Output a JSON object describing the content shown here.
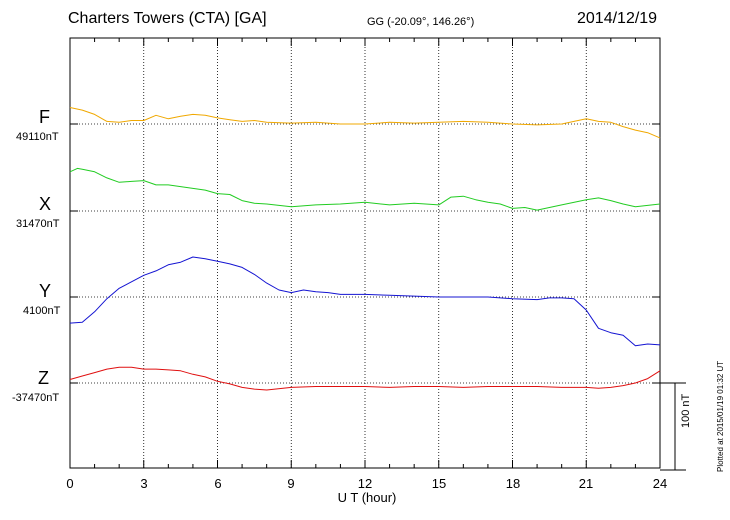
{
  "header": {
    "station": "Charters Towers (CTA)  [GA]",
    "coords": "GG (-20.09°, 146.26°)",
    "date": "2014/12/19"
  },
  "components": [
    {
      "name": "F",
      "baseline": "49110nT",
      "color": "#f0a800"
    },
    {
      "name": "X",
      "baseline": "31470nT",
      "color": "#22cc22"
    },
    {
      "name": "Y",
      "baseline": "4100nT",
      "color": "#1414d2"
    },
    {
      "name": "Z",
      "baseline": "-37470nT",
      "color": "#e01010"
    }
  ],
  "xaxis": {
    "label": "U T (hour)",
    "ticks": [
      "0",
      "3",
      "6",
      "9",
      "12",
      "15",
      "18",
      "21",
      "24"
    ]
  },
  "scale_label": "100 nT",
  "plotted": "Plotted at 2015/01/19 01:32 UT",
  "chart_data": {
    "type": "line",
    "title": "Charters Towers (CTA)  [GA]",
    "xlabel": "U T (hour)",
    "ylabel": "",
    "xlim": [
      0,
      24
    ],
    "unit": "nT",
    "scale_bar_nT": 100,
    "grid": true,
    "series": [
      {
        "name": "F",
        "baseline_nT": 49110,
        "x": [
          0,
          0.5,
          1,
          1.5,
          2,
          2.5,
          3,
          3.5,
          4,
          4.5,
          5,
          5.5,
          6,
          6.5,
          7,
          7.5,
          8,
          9,
          10,
          11,
          12,
          13,
          14,
          15,
          16,
          17,
          18,
          19,
          20,
          21,
          21.5,
          22,
          22.5,
          23,
          23.5,
          24
        ],
        "y": [
          19,
          16,
          11,
          3,
          2,
          4,
          4,
          10,
          6,
          9,
          11,
          10,
          7,
          5,
          3,
          4,
          2,
          1,
          2,
          0,
          0,
          2,
          1,
          2,
          3,
          2,
          0,
          -1,
          0,
          6,
          3,
          2,
          -3,
          -7,
          -10,
          -16
        ]
      },
      {
        "name": "X",
        "baseline_nT": 31470,
        "x": [
          0,
          0.3,
          0.5,
          1,
          1.5,
          2,
          2.5,
          3,
          3.5,
          4,
          4.5,
          5,
          5.5,
          6,
          6.5,
          7,
          7.5,
          8,
          9,
          10,
          11,
          12,
          13,
          14,
          15,
          15.5,
          16,
          16.5,
          17,
          17.5,
          18,
          18.5,
          19,
          19.5,
          20,
          21,
          21.5,
          22,
          22.5,
          23,
          24
        ],
        "y": [
          45,
          49,
          48,
          45,
          38,
          33,
          34,
          35,
          30,
          30,
          28,
          26,
          24,
          20,
          19,
          12,
          9,
          8,
          5,
          7,
          8,
          10,
          7,
          9,
          7,
          16,
          17,
          13,
          10,
          8,
          3,
          4,
          1,
          4,
          7,
          13,
          15,
          12,
          8,
          5,
          8
        ]
      },
      {
        "name": "Y",
        "baseline_nT": 4100,
        "x": [
          0,
          0.5,
          1,
          1.5,
          2,
          3,
          3.5,
          4,
          4.5,
          5,
          5.5,
          6,
          6.5,
          7,
          7.5,
          8,
          8.5,
          9,
          9.5,
          10,
          10.5,
          11,
          12,
          13,
          14,
          15,
          16,
          17,
          18,
          19,
          19.5,
          20,
          20.5,
          21,
          21.5,
          22,
          22.5,
          23,
          23.5,
          24
        ],
        "y": [
          -30,
          -29,
          -17,
          -2,
          10,
          25,
          30,
          37,
          40,
          46,
          44,
          41,
          38,
          34,
          26,
          16,
          8,
          5,
          8,
          6,
          5,
          3,
          3,
          2,
          1,
          0,
          0,
          0,
          -2,
          -3,
          -1,
          -1,
          -2,
          -15,
          -36,
          -41,
          -44,
          -56,
          -54,
          -55
        ]
      },
      {
        "name": "Z",
        "baseline_nT": -37470,
        "x": [
          0,
          0.5,
          1,
          1.5,
          2,
          2.5,
          3,
          3.5,
          4,
          4.5,
          5,
          5.5,
          6,
          6.5,
          7,
          7.5,
          8,
          9,
          10,
          11,
          12,
          13,
          14,
          15,
          16,
          17,
          18,
          19,
          20,
          21,
          21.5,
          22,
          22.5,
          23,
          23.5,
          24
        ],
        "y": [
          4,
          8,
          12,
          16,
          18,
          18,
          16,
          16,
          15,
          14,
          10,
          7,
          2,
          -1,
          -5,
          -7,
          -8,
          -5,
          -4,
          -4,
          -4,
          -5,
          -4,
          -4,
          -5,
          -4,
          -4,
          -4,
          -5,
          -5,
          -6,
          -5,
          -3,
          0,
          5,
          14
        ]
      }
    ]
  }
}
